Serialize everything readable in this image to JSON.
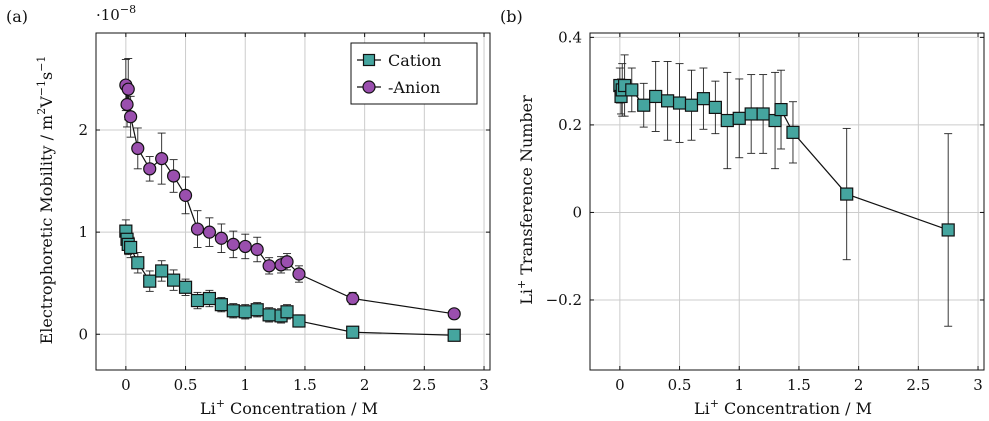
{
  "colors": {
    "cation_fill": "#45a59f",
    "anion_fill": "#9a4fae",
    "stroke": "#111111",
    "grid": "#cccccc"
  },
  "chart_data": [
    {
      "panel_label": "(a)",
      "type": "scatter",
      "xlabel": "Li+ Concentration / M",
      "ylabel": "Electrophoretic Mobility / m2V−1s−1",
      "xlabel_main": "Li",
      "xlabel_sup": "+",
      "xlabel_rest": " Concentration / M",
      "ylabel_main": "Electrophoretic Mobility / m",
      "ylabel_sup1": "2",
      "ylabel_mid1": "V",
      "ylabel_sup2": "−1",
      "ylabel_mid2": "s",
      "ylabel_sup3": "−1",
      "exponent": "·10−8",
      "exponent_base": "·10",
      "exponent_sup": "−8",
      "xlim": [
        -0.25,
        3.05
      ],
      "ylim": [
        -0.35,
        2.95
      ],
      "xticks": [
        0,
        0.5,
        1,
        1.5,
        2,
        2.5,
        3
      ],
      "xtick_labels": [
        "0",
        "0.5",
        "1",
        "1.5",
        "2",
        "2.5",
        "3"
      ],
      "yticks": [
        0,
        1,
        2
      ],
      "ytick_labels": [
        "0",
        "1",
        "2"
      ],
      "grid": true,
      "legend_position": "top-right",
      "series": [
        {
          "name": "Cation",
          "marker": "square",
          "x": [
            0.0,
            0.01,
            0.02,
            0.04,
            0.1,
            0.2,
            0.3,
            0.4,
            0.5,
            0.6,
            0.7,
            0.8,
            0.9,
            1.0,
            1.1,
            1.2,
            1.3,
            1.35,
            1.45,
            1.9,
            2.75
          ],
          "y": [
            1.01,
            0.93,
            0.88,
            0.85,
            0.7,
            0.52,
            0.62,
            0.53,
            0.46,
            0.33,
            0.35,
            0.29,
            0.23,
            0.22,
            0.24,
            0.19,
            0.18,
            0.22,
            0.13,
            0.02,
            -0.01
          ],
          "err": [
            0.11,
            0.1,
            0.1,
            0.1,
            0.1,
            0.1,
            0.1,
            0.1,
            0.08,
            0.08,
            0.08,
            0.07,
            0.07,
            0.07,
            0.07,
            0.07,
            0.07,
            0.07,
            0.06,
            0.04,
            0.03
          ]
        },
        {
          "name": "-Anion",
          "marker": "circle",
          "x": [
            0.0,
            0.01,
            0.02,
            0.04,
            0.1,
            0.2,
            0.3,
            0.4,
            0.5,
            0.6,
            0.7,
            0.8,
            0.9,
            1.0,
            1.1,
            1.2,
            1.3,
            1.35,
            1.45,
            1.9,
            2.75
          ],
          "y": [
            2.44,
            2.25,
            2.4,
            2.13,
            1.82,
            1.62,
            1.72,
            1.55,
            1.36,
            1.03,
            1.0,
            0.94,
            0.88,
            0.86,
            0.83,
            0.67,
            0.68,
            0.71,
            0.59,
            0.35,
            0.2
          ],
          "err": [
            0.25,
            0.22,
            0.3,
            0.2,
            0.2,
            0.12,
            0.25,
            0.16,
            0.18,
            0.18,
            0.14,
            0.14,
            0.13,
            0.12,
            0.12,
            0.08,
            0.08,
            0.08,
            0.08,
            0.06,
            0.03
          ]
        }
      ]
    },
    {
      "panel_label": "(b)",
      "type": "scatter",
      "xlabel": "Li+ Concentration / M",
      "ylabel": "Li+ Transference Number",
      "xlabel_main": "Li",
      "xlabel_sup": "+",
      "xlabel_rest": " Concentration / M",
      "ylabel_main": "Li",
      "ylabel_sup": "+",
      "ylabel_rest": " Transference Number",
      "xlim": [
        -0.25,
        3.05
      ],
      "ylim": [
        -0.36,
        0.41
      ],
      "xticks": [
        0,
        0.5,
        1,
        1.5,
        2,
        2.5,
        3
      ],
      "xtick_labels": [
        "0",
        "0.5",
        "1",
        "1.5",
        "2",
        "2.5",
        "3"
      ],
      "yticks": [
        -0.2,
        0,
        0.2,
        0.4
      ],
      "ytick_labels": [
        "−0.2",
        "0",
        "0.2",
        "0.4"
      ],
      "grid": true,
      "series": [
        {
          "name": "",
          "marker": "square",
          "x": [
            0.0,
            0.01,
            0.02,
            0.04,
            0.1,
            0.2,
            0.3,
            0.4,
            0.5,
            0.6,
            0.7,
            0.8,
            0.9,
            1.0,
            1.1,
            1.2,
            1.3,
            1.35,
            1.45,
            1.9,
            2.75
          ],
          "y": [
            0.29,
            0.265,
            0.28,
            0.29,
            0.28,
            0.245,
            0.265,
            0.255,
            0.25,
            0.245,
            0.26,
            0.24,
            0.21,
            0.215,
            0.225,
            0.225,
            0.21,
            0.235,
            0.183,
            0.042,
            -0.04
          ],
          "err": [
            0.04,
            0.04,
            0.06,
            0.07,
            0.05,
            0.05,
            0.08,
            0.09,
            0.09,
            0.08,
            0.07,
            0.06,
            0.11,
            0.09,
            0.09,
            0.09,
            0.11,
            0.09,
            0.07,
            0.15,
            0.22
          ]
        }
      ]
    }
  ]
}
